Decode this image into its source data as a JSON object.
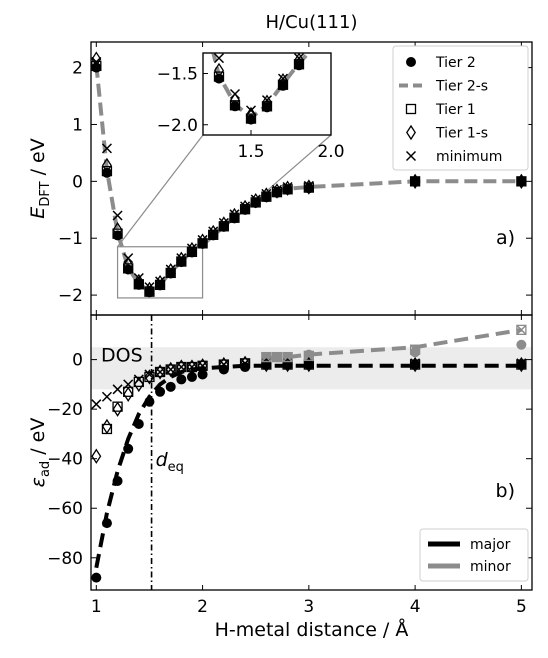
{
  "chart_data": [
    {
      "type": "scatter",
      "panel_label": "a)",
      "title": "H/Cu(111)",
      "ylabel_main": "E",
      "ylabel_sub": "DFT",
      "ylabel_unit": " / eV",
      "xlim": [
        0.95,
        5.1
      ],
      "ylim": [
        -2.35,
        2.45
      ],
      "x_ticks": [
        1,
        2,
        3,
        4,
        5
      ],
      "y_ticks": [
        -2,
        -1,
        0,
        1,
        2
      ],
      "y_tick_labels": [
        "−2",
        "−1",
        "0",
        "1",
        "2"
      ],
      "legend": [
        {
          "label": "Tier 2",
          "marker": "filled-circle"
        },
        {
          "label": "Tier 2-s",
          "marker": "gray-dashed-line"
        },
        {
          "label": "Tier 1",
          "marker": "open-square"
        },
        {
          "label": "Tier 1-s",
          "marker": "open-diamond"
        },
        {
          "label": "minimum",
          "marker": "x-cross"
        }
      ],
      "legend_position": "upper-right",
      "series": [
        {
          "name": "Tier 2",
          "x": [
            1.0,
            1.1,
            1.2,
            1.3,
            1.4,
            1.5,
            1.6,
            1.7,
            1.8,
            1.9,
            2.0,
            2.1,
            2.2,
            2.3,
            2.4,
            2.5,
            2.6,
            2.7,
            2.8,
            3.0,
            4.0,
            5.0
          ],
          "y": [
            2.0,
            0.15,
            -0.95,
            -1.55,
            -1.82,
            -1.95,
            -1.83,
            -1.62,
            -1.42,
            -1.25,
            -1.1,
            -0.95,
            -0.8,
            -0.65,
            -0.5,
            -0.38,
            -0.28,
            -0.2,
            -0.15,
            -0.12,
            0.0,
            0.0
          ]
        },
        {
          "name": "Tier 2-s",
          "x": [
            1.0,
            1.1,
            1.2,
            1.3,
            1.4,
            1.5,
            1.6,
            1.7,
            1.8,
            1.9,
            2.0,
            2.1,
            2.2,
            2.3,
            2.4,
            2.5,
            2.6,
            2.7,
            2.8,
            3.0,
            4.0,
            5.0
          ],
          "y": [
            2.05,
            0.2,
            -0.9,
            -1.52,
            -1.8,
            -1.93,
            -1.81,
            -1.6,
            -1.4,
            -1.23,
            -1.08,
            -0.93,
            -0.78,
            -0.63,
            -0.48,
            -0.36,
            -0.26,
            -0.18,
            -0.13,
            -0.1,
            0.0,
            0.0
          ]
        },
        {
          "name": "Tier 1",
          "x": [
            1.0,
            1.1,
            1.2,
            1.3,
            1.4,
            1.5,
            1.6,
            1.7,
            1.8,
            1.9,
            2.0,
            2.1,
            2.2,
            2.3,
            2.4,
            2.5,
            2.6,
            2.7,
            2.8,
            3.0,
            4.0,
            5.0
          ],
          "y": [
            2.03,
            0.18,
            -0.92,
            -1.53,
            -1.81,
            -1.94,
            -1.82,
            -1.61,
            -1.41,
            -1.24,
            -1.09,
            -0.94,
            -0.79,
            -0.64,
            -0.49,
            -0.37,
            -0.27,
            -0.19,
            -0.14,
            -0.11,
            0.0,
            0.0
          ]
        },
        {
          "name": "Tier 1-s",
          "x": [
            1.0,
            1.1,
            1.2,
            1.3,
            1.4,
            1.5,
            1.6,
            1.7,
            1.8,
            1.9,
            2.0,
            2.1,
            2.2,
            2.3,
            2.4,
            2.5,
            2.6,
            2.7,
            2.8,
            3.0,
            4.0,
            5.0
          ],
          "y": [
            2.15,
            0.28,
            -0.85,
            -1.47,
            -1.76,
            -1.9,
            -1.78,
            -1.57,
            -1.37,
            -1.2,
            -1.05,
            -0.9,
            -0.75,
            -0.6,
            -0.46,
            -0.34,
            -0.24,
            -0.17,
            -0.12,
            -0.1,
            0.0,
            0.0
          ]
        },
        {
          "name": "minimum",
          "x": [
            1.0,
            1.1,
            1.2,
            1.3,
            1.4,
            1.5,
            1.6,
            1.7,
            1.8,
            1.9,
            2.0,
            2.1,
            2.2,
            2.3,
            2.4,
            2.5,
            2.6,
            2.7,
            2.8,
            3.0,
            4.0,
            5.0
          ],
          "y": [
            2.1,
            0.58,
            -0.6,
            -1.35,
            -1.7,
            -1.86,
            -1.76,
            -1.55,
            -1.35,
            -1.18,
            -1.03,
            -0.88,
            -0.73,
            -0.58,
            -0.44,
            -0.32,
            -0.22,
            -0.15,
            -0.1,
            -0.08,
            0.0,
            0.0
          ]
        }
      ],
      "inset": {
        "xlim": [
          1.2,
          2.0
        ],
        "ylim": [
          -2.1,
          -1.3
        ],
        "x_ticks": [
          1.5,
          2.0
        ],
        "x_tick_labels": [
          "1.5",
          "2.0"
        ],
        "y_ticks": [
          -2.0,
          -1.5
        ],
        "y_tick_labels": [
          "−2.0",
          "−1.5"
        ],
        "zoom_region": {
          "x": [
            1.2,
            2.0
          ],
          "y": [
            -2.05,
            -1.15
          ]
        }
      }
    },
    {
      "type": "scatter",
      "panel_label": "b)",
      "ylabel_main": "ε",
      "ylabel_sub": "ad",
      "ylabel_unit": " / eV",
      "xlabel": "H-metal distance / Å",
      "xlim": [
        0.95,
        5.1
      ],
      "ylim": [
        -93,
        18
      ],
      "x_ticks": [
        1,
        2,
        3,
        4,
        5
      ],
      "y_ticks": [
        -80,
        -60,
        -40,
        -20,
        0
      ],
      "y_tick_labels": [
        "−80",
        "−60",
        "−40",
        "−20",
        "0"
      ],
      "dos_label": "DOS",
      "dos_band": [
        -12,
        5
      ],
      "deq_label_main": "d",
      "deq_label_sub": "eq",
      "deq_x": 1.52,
      "legend": [
        {
          "label": "major",
          "color": "#000000"
        },
        {
          "label": "minor",
          "color": "#8c8c8c"
        }
      ],
      "legend_position": "lower-right",
      "series": [
        {
          "name": "Tier 2 major",
          "x": [
            1.0,
            1.1,
            1.2,
            1.3,
            1.4,
            1.5,
            1.6,
            1.7,
            1.8,
            1.9,
            2.0,
            2.2,
            2.4,
            2.6,
            2.8,
            3.0,
            4.0,
            5.0
          ],
          "y": [
            -88,
            -66,
            -49,
            -36,
            -26,
            -17,
            -13,
            -11,
            -8,
            -7,
            -6,
            -4,
            -3,
            -2,
            -2,
            -2,
            -2,
            -2
          ]
        },
        {
          "name": "Tier 2 minor",
          "x": [
            2.6,
            2.7,
            2.8,
            3.0,
            4.0,
            5.0
          ],
          "y": [
            1,
            1,
            1,
            2,
            3,
            6
          ]
        },
        {
          "name": "Tier 2-s major fit",
          "x": [
            1.0,
            1.1,
            1.2,
            1.3,
            1.4,
            1.5,
            1.6,
            1.7,
            1.8,
            1.9,
            2.0,
            2.2,
            2.4,
            2.6,
            2.8,
            3.0,
            4.0,
            5.0
          ],
          "y": [
            -84,
            -62,
            -45,
            -32,
            -22,
            -15,
            -10,
            -7,
            -5,
            -4,
            -3.5,
            -3,
            -2.5,
            -2.5,
            -2.5,
            -2.5,
            -2.5,
            -2.5
          ]
        },
        {
          "name": "Tier 2-s minor fit",
          "x": [
            2.6,
            2.7,
            2.8,
            3.0,
            4.0,
            5.0
          ],
          "y": [
            0.5,
            1,
            1,
            2,
            5,
            12
          ]
        },
        {
          "name": "Tier 1",
          "x": [
            1.1,
            1.2,
            1.3,
            1.4,
            1.5,
            1.6,
            1.7,
            1.8,
            1.9,
            2.0,
            2.2,
            2.4,
            2.6,
            2.8,
            3.0,
            4.0,
            5.0
          ],
          "y": [
            -28,
            -19,
            -13,
            -9,
            -7,
            -5,
            -4,
            -3,
            -3,
            -2.5,
            -2,
            -1.5,
            -2,
            -2,
            -2,
            -2,
            -2
          ]
        },
        {
          "name": "Tier 1-s",
          "x": [
            1.0,
            1.1,
            1.2,
            1.3,
            1.4,
            1.5,
            1.6,
            1.7,
            1.8,
            1.9,
            2.0,
            2.2,
            2.4,
            2.6,
            2.8,
            3.0,
            4.0,
            5.0
          ],
          "y": [
            -39,
            -27,
            -20,
            -14,
            -10,
            -7,
            -5,
            -4,
            -3,
            -3,
            -2.5,
            -2,
            -1.5,
            -2,
            -2,
            -2,
            -2,
            -2
          ]
        },
        {
          "name": "minimum",
          "x": [
            1.0,
            1.1,
            1.2,
            1.3,
            1.4,
            1.5,
            1.6,
            1.7,
            1.8,
            1.9,
            2.0,
            2.2,
            2.4,
            2.6,
            2.8,
            3.0,
            4.0,
            5.0
          ],
          "y": [
            -18,
            -15,
            -12,
            -10,
            -8,
            -6,
            -5,
            -4,
            -3,
            -3,
            -2.5,
            -2,
            -1.5,
            -1.5,
            -1.5,
            -1.5,
            -1.5,
            -1.5
          ]
        },
        {
          "name": "minor markers",
          "x": [
            2.6,
            2.7,
            2.8,
            3.0,
            4.0,
            5.0
          ],
          "y": [
            1,
            1,
            1,
            1.5,
            4,
            12
          ]
        }
      ]
    }
  ]
}
